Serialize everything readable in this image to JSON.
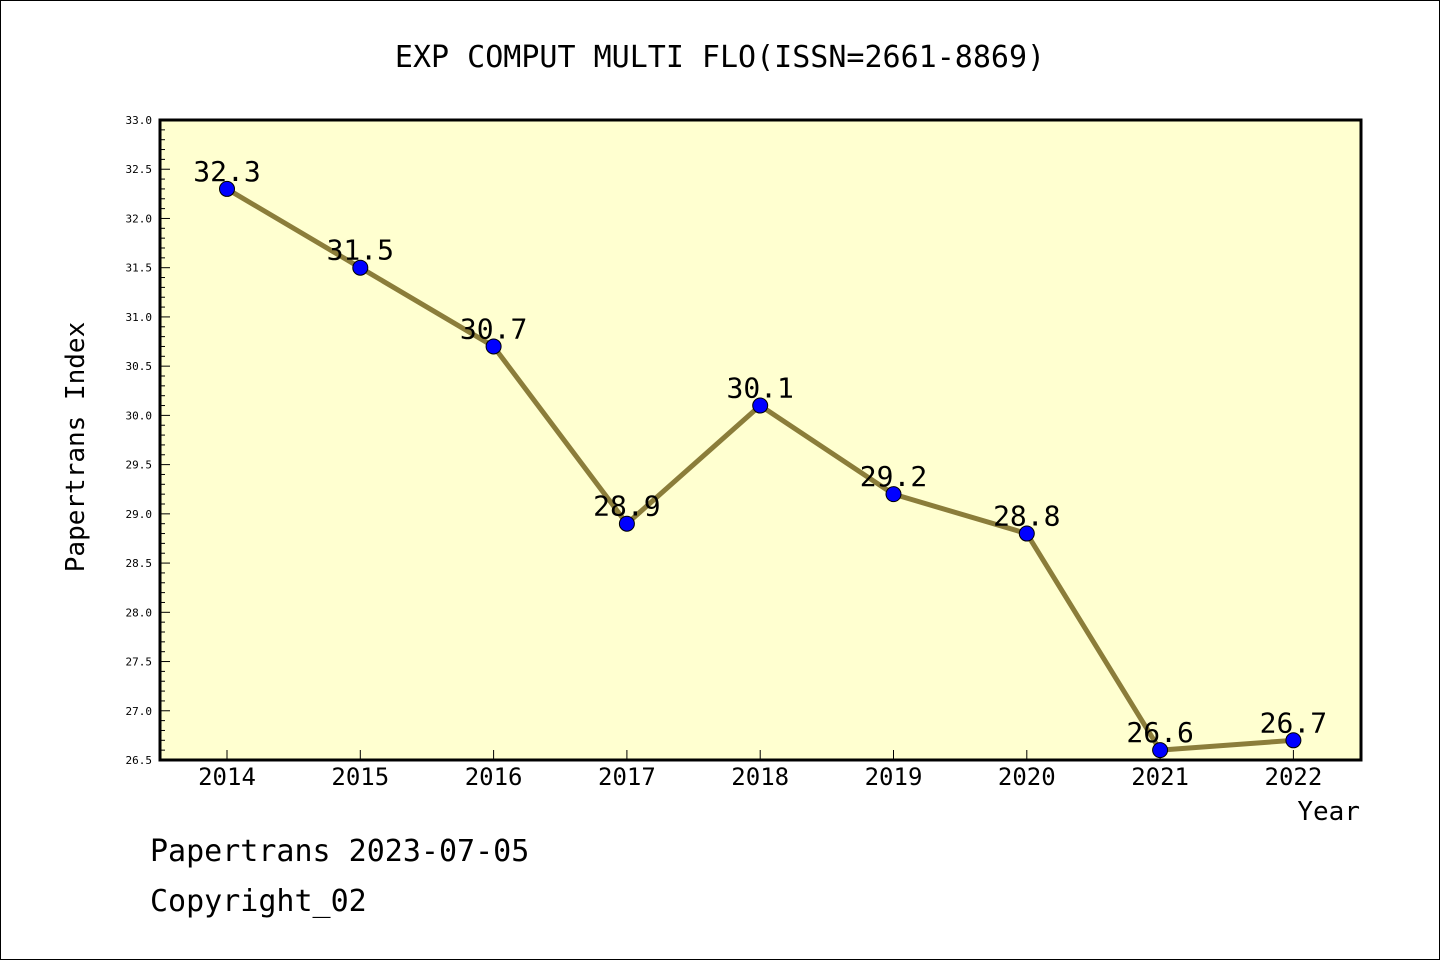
{
  "chart_data": {
    "type": "line",
    "title": "EXP COMPUT MULTI FLO(ISSN=2661-8869)",
    "xlabel": "Year",
    "ylabel": "Papertrans Index",
    "categories": [
      "2014",
      "2015",
      "2016",
      "2017",
      "2018",
      "2019",
      "2020",
      "2021",
      "2022"
    ],
    "values": [
      32.3,
      31.5,
      30.7,
      28.9,
      30.1,
      29.2,
      28.8,
      26.6,
      26.7
    ],
    "data_labels": [
      "32.3",
      "31.5",
      "30.7",
      "28.9",
      "30.1",
      "29.2",
      "28.8",
      "26.6",
      "26.7"
    ],
    "ylim": [
      26.5,
      33.0
    ],
    "yticks": [
      "26.5",
      "27.0",
      "27.5",
      "28.0",
      "28.5",
      "29.0",
      "29.5",
      "30.0",
      "30.5",
      "31.0",
      "31.5",
      "32.0",
      "32.5",
      "33.0"
    ],
    "grid": false,
    "colors": {
      "plot_background": "#ffffd0",
      "line": "#8b7d3a",
      "marker": "#0000ff"
    }
  },
  "footer": {
    "line1": "Papertrans 2023-07-05",
    "line2": "Copyright_02"
  }
}
